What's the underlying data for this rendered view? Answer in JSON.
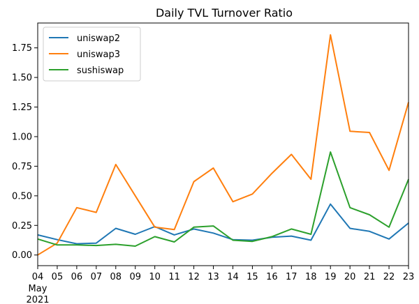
{
  "chart_data": {
    "type": "line",
    "title": "Daily TVL Turnover Ratio",
    "xlabel": "",
    "ylabel": "",
    "x": [
      "04",
      "05",
      "06",
      "07",
      "08",
      "09",
      "10",
      "11",
      "12",
      "13",
      "14",
      "15",
      "16",
      "17",
      "18",
      "19",
      "20",
      "21",
      "22",
      "23"
    ],
    "x_sublabels": [
      "May",
      "2021"
    ],
    "yticks": [
      "0.00",
      "0.25",
      "0.50",
      "0.75",
      "1.00",
      "1.25",
      "1.50",
      "1.75"
    ],
    "ylim": [
      -0.09,
      1.96
    ],
    "grid": false,
    "legend_position": "top-left",
    "series": [
      {
        "name": "uniswap2",
        "color": "#1f77b4",
        "values": [
          0.17,
          0.13,
          0.095,
          0.1,
          0.225,
          0.175,
          0.24,
          0.17,
          0.22,
          0.185,
          0.13,
          0.125,
          0.15,
          0.16,
          0.125,
          0.43,
          0.225,
          0.2,
          0.135,
          0.27
        ]
      },
      {
        "name": "uniswap3",
        "color": "#ff7f0e",
        "values": [
          0.0,
          0.1,
          0.4,
          0.36,
          0.765,
          0.5,
          0.235,
          0.215,
          0.62,
          0.735,
          0.45,
          0.515,
          0.69,
          0.85,
          0.64,
          1.86,
          1.045,
          1.035,
          0.715,
          1.29
        ]
      },
      {
        "name": "sushiswap",
        "color": "#2ca02c",
        "values": [
          0.135,
          0.085,
          0.085,
          0.08,
          0.09,
          0.075,
          0.155,
          0.11,
          0.235,
          0.245,
          0.125,
          0.115,
          0.155,
          0.22,
          0.175,
          0.87,
          0.4,
          0.34,
          0.235,
          0.64
        ]
      }
    ]
  }
}
